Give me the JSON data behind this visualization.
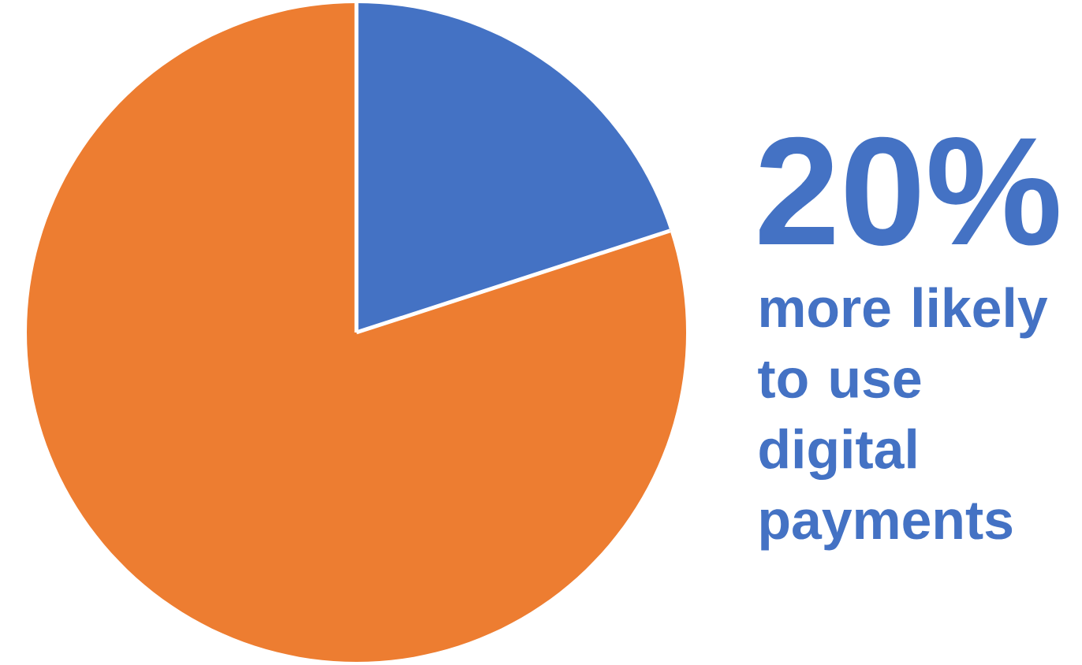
{
  "chart_data": {
    "type": "pie",
    "categories": [
      null,
      null
    ],
    "values": [
      20,
      80
    ],
    "colors": [
      "#4472c4",
      "#ed7d31"
    ],
    "annotations": [
      "20%",
      "more likely to use digital payments"
    ]
  }
}
